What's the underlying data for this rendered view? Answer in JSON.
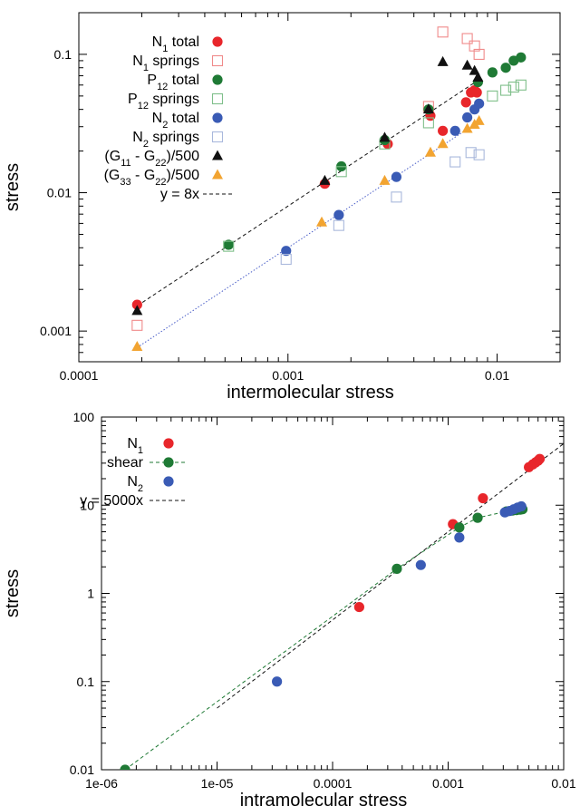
{
  "chart_data": [
    {
      "type": "scatter",
      "xscale": "log",
      "yscale": "log",
      "xlim": [
        0.0001,
        0.02
      ],
      "ylim": [
        0.0006,
        0.2
      ],
      "xlabel": "intermolecular stress",
      "ylabel": "stress",
      "xticks": [
        {
          "v": 0.0001,
          "label": "0.0001"
        },
        {
          "v": 0.001,
          "label": "0.001"
        },
        {
          "v": 0.01,
          "label": "0.01"
        }
      ],
      "yticks": [
        {
          "v": 0.001,
          "label": "0.001"
        },
        {
          "v": 0.01,
          "label": "0.01"
        },
        {
          "v": 0.1,
          "label": "0.1"
        }
      ],
      "grid": false,
      "legend_position": "top-left",
      "series": [
        {
          "name_main": "N",
          "name_sub": "1",
          "name_rest": " total",
          "marker": "circle-filled",
          "color": "#e8262b",
          "points": [
            [
              0.00019,
              0.00155
            ],
            [
              0.0015,
              0.0116
            ],
            [
              0.003,
              0.0225
            ],
            [
              0.0048,
              0.036
            ],
            [
              0.0055,
              0.028
            ],
            [
              0.0071,
              0.045
            ],
            [
              0.0075,
              0.053
            ],
            [
              0.0078,
              0.055
            ],
            [
              0.008,
              0.053
            ]
          ]
        },
        {
          "name_main": "N",
          "name_sub": "1",
          "name_rest": " springs",
          "marker": "square-open",
          "color": "#f08a8a",
          "points": [
            [
              0.00019,
              0.0011
            ],
            [
              0.0047,
              0.042
            ],
            [
              0.0055,
              0.145
            ],
            [
              0.0072,
              0.13
            ],
            [
              0.0078,
              0.115
            ],
            [
              0.0082,
              0.1
            ]
          ]
        },
        {
          "name_main": "P",
          "name_sub": "12",
          "name_rest": " total",
          "marker": "circle-filled",
          "color": "#1f7a35",
          "points": [
            [
              0.00052,
              0.0042
            ],
            [
              0.0018,
              0.0155
            ],
            [
              0.0029,
              0.024
            ],
            [
              0.0047,
              0.04
            ],
            [
              0.0081,
              0.063
            ],
            [
              0.0095,
              0.074
            ],
            [
              0.011,
              0.08
            ],
            [
              0.012,
              0.09
            ],
            [
              0.013,
              0.095
            ]
          ]
        },
        {
          "name_main": "P",
          "name_sub": "12",
          "name_rest": " springs",
          "marker": "square-open",
          "color": "#7fbf8a",
          "points": [
            [
              0.00052,
              0.0041
            ],
            [
              0.0018,
              0.0142
            ],
            [
              0.0029,
              0.0225
            ],
            [
              0.0047,
              0.032
            ],
            [
              0.0095,
              0.05
            ],
            [
              0.011,
              0.055
            ],
            [
              0.012,
              0.058
            ],
            [
              0.013,
              0.06
            ]
          ]
        },
        {
          "name_main": "N",
          "name_sub": "2",
          "name_rest": " total",
          "marker": "circle-filled",
          "color": "#3a5bb5",
          "points": [
            [
              0.00098,
              0.0038
            ],
            [
              0.00175,
              0.0069
            ],
            [
              0.0033,
              0.013
            ],
            [
              0.0063,
              0.028
            ],
            [
              0.0072,
              0.035
            ],
            [
              0.0078,
              0.04
            ],
            [
              0.0082,
              0.044
            ]
          ]
        },
        {
          "name_main": "N",
          "name_sub": "2",
          "name_rest": " springs",
          "marker": "square-open",
          "color": "#a9b8dc",
          "points": [
            [
              0.00098,
              0.0033
            ],
            [
              0.00175,
              0.0058
            ],
            [
              0.0033,
              0.0093
            ],
            [
              0.0063,
              0.0167
            ],
            [
              0.0075,
              0.0195
            ],
            [
              0.0082,
              0.0188
            ]
          ]
        },
        {
          "name_main": "(G",
          "name_sub": "11",
          "name_rest": " - G",
          "name_sub2": "22",
          "name_rest2": ")/500",
          "marker": "triangle-filled",
          "color": "#111111",
          "points": [
            [
              0.00019,
              0.0014
            ],
            [
              0.0015,
              0.0122
            ],
            [
              0.0029,
              0.025
            ],
            [
              0.0047,
              0.04
            ],
            [
              0.0055,
              0.088
            ],
            [
              0.0072,
              0.083
            ],
            [
              0.0078,
              0.076
            ],
            [
              0.0081,
              0.068
            ]
          ]
        },
        {
          "name_main": "(G",
          "name_sub": "33",
          "name_rest": " - G",
          "name_sub2": "22",
          "name_rest2": ")/500",
          "marker": "triangle-filled",
          "color": "#f2a431",
          "points": [
            [
              0.00019,
              0.00077
            ],
            [
              0.00145,
              0.0061
            ],
            [
              0.0029,
              0.0122
            ],
            [
              0.0048,
              0.0195
            ],
            [
              0.0055,
              0.0225
            ],
            [
              0.0072,
              0.029
            ],
            [
              0.0078,
              0.031
            ],
            [
              0.0082,
              0.033
            ]
          ]
        }
      ],
      "fit_lines": [
        {
          "label": "y = 8x",
          "slope": 8,
          "x_range": [
            0.00019,
            0.0082
          ],
          "color": "#111111",
          "style": "dashed",
          "in_legend": true
        },
        {
          "label": "",
          "slope": 4,
          "x_range": [
            0.00019,
            0.0082
          ],
          "color": "#4a5ec8",
          "style": "dotted",
          "in_legend": false
        }
      ]
    },
    {
      "type": "scatter",
      "xscale": "log",
      "yscale": "log",
      "xlim": [
        1e-06,
        0.01
      ],
      "ylim": [
        0.01,
        100
      ],
      "xlabel": "intramolecular stress",
      "ylabel": "stress",
      "xticks": [
        {
          "v": 1e-06,
          "label": "1e-06"
        },
        {
          "v": 1e-05,
          "label": "1e-05"
        },
        {
          "v": 0.0001,
          "label": "0.0001"
        },
        {
          "v": 0.001,
          "label": "0.001"
        },
        {
          "v": 0.01,
          "label": "0.01"
        }
      ],
      "yticks": [
        {
          "v": 0.01,
          "label": "0.01"
        },
        {
          "v": 0.1,
          "label": "0.1"
        },
        {
          "v": 1,
          "label": "1"
        },
        {
          "v": 10,
          "label": "10"
        },
        {
          "v": 100,
          "label": "100"
        }
      ],
      "grid": false,
      "legend_position": "top-left",
      "series": [
        {
          "name_main": "N",
          "name_sub": "1",
          "name_rest": "",
          "marker": "circle-filled",
          "color": "#e8262b",
          "connect": false,
          "points": [
            [
              0.00017,
              0.7
            ],
            [
              0.0011,
              6.1
            ],
            [
              0.002,
              12
            ],
            [
              0.005,
              27
            ],
            [
              0.0054,
              29
            ],
            [
              0.0057,
              30.5
            ],
            [
              0.006,
              32
            ],
            [
              0.0062,
              33.5
            ]
          ]
        },
        {
          "name_main": "shear",
          "name_sub": "",
          "name_rest": "",
          "marker": "circle-filled",
          "color": "#1f7a35",
          "connect": true,
          "points": [
            [
              1.6e-06,
              0.01
            ],
            [
              0.00036,
              1.9
            ],
            [
              0.00125,
              5.6
            ],
            [
              0.0018,
              7.2
            ],
            [
              0.0032,
              8.5
            ],
            [
              0.0036,
              8.7
            ],
            [
              0.0039,
              8.8
            ],
            [
              0.0042,
              8.9
            ],
            [
              0.0044,
              9.0
            ]
          ]
        },
        {
          "name_main": "N",
          "name_sub": "2",
          "name_rest": "",
          "marker": "circle-filled",
          "color": "#3a5bb5",
          "connect": false,
          "points": [
            [
              3.3e-05,
              0.1
            ],
            [
              0.00058,
              2.1
            ],
            [
              0.00125,
              4.3
            ],
            [
              0.0031,
              8.3
            ],
            [
              0.0034,
              8.6
            ],
            [
              0.0037,
              9.0
            ],
            [
              0.004,
              9.4
            ],
            [
              0.0043,
              9.7
            ]
          ]
        }
      ],
      "fit_lines": [
        {
          "label": "y = 5000x",
          "slope": 5000,
          "x_range": [
            1e-05,
            0.01
          ],
          "color": "#111111",
          "style": "dashed",
          "in_legend": true
        }
      ]
    }
  ]
}
